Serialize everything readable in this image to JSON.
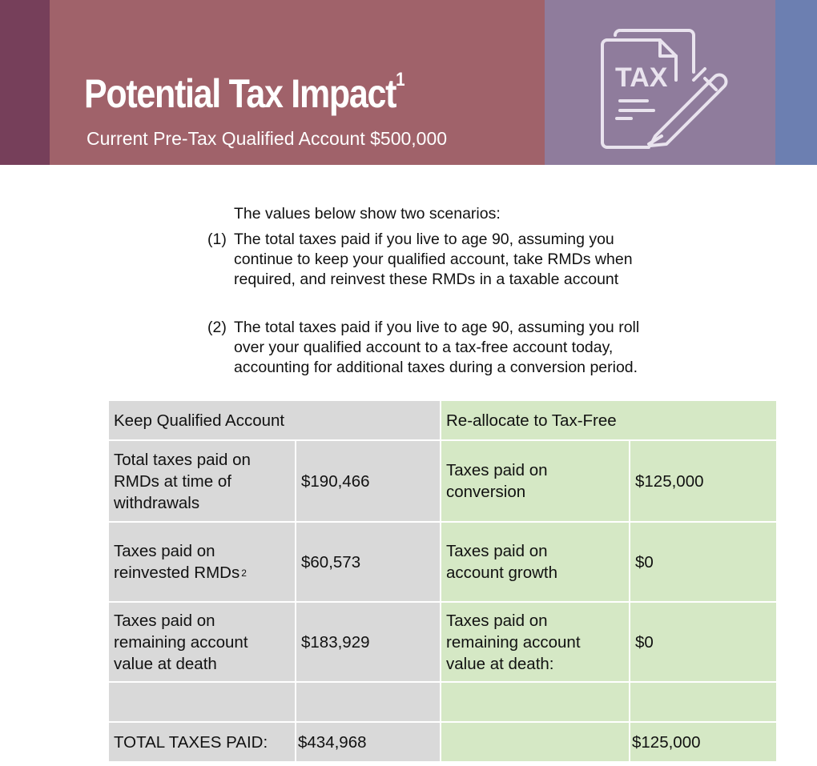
{
  "header": {
    "title": "Potential Tax Impact",
    "title_footnote": "1",
    "subtitle": "Current Pre-Tax Qualified Account $500,000",
    "icon_text": "TAX",
    "colors": {
      "band_left": "#763f5a",
      "band_main": "#a0626a",
      "band_icon": "#8f7c9c",
      "band_right": "#6c7fb1"
    }
  },
  "intro": {
    "lead": "The values below show two scenarios:",
    "scenario_1": {
      "marker": "(1)",
      "lines": [
        "The total taxes paid if you live to age 90, assuming you",
        "continue to keep your qualified account, take RMDs when",
        "required, and reinvest these RMDs in a taxable account"
      ]
    },
    "scenario_2": {
      "marker": "(2)",
      "lines": [
        "The total taxes paid if you live to age 90, assuming you roll",
        "over your qualified account to a tax-free account today,",
        "accounting for additional taxes during a conversion period."
      ]
    }
  },
  "table": {
    "headers": {
      "keep": "Keep Qualified Account",
      "reallocate": "Re-allocate to Tax-Free"
    },
    "rows": [
      {
        "keep_label_lines": [
          "Total taxes paid on",
          "RMDs at time of",
          "withdrawals"
        ],
        "keep_value": "$190,466",
        "realloc_label_lines": [
          "Taxes paid on",
          "conversion"
        ],
        "realloc_value": "$125,000"
      },
      {
        "keep_label_lines": [
          "Taxes paid on",
          "reinvested RMDs"
        ],
        "keep_footnote": "2",
        "keep_value": "$60,573",
        "realloc_label_lines": [
          "Taxes paid on",
          "account growth"
        ],
        "realloc_value": "$0"
      },
      {
        "keep_label_lines": [
          "Taxes paid on",
          "remaining account",
          "value at death"
        ],
        "keep_value": "$183,929",
        "realloc_label_lines": [
          "Taxes paid on",
          "remaining account",
          "value at death:"
        ],
        "realloc_value": "$0"
      }
    ],
    "total": {
      "label": "TOTAL TAXES PAID:",
      "keep_value": "$434,968",
      "realloc_value": "$125,000"
    },
    "colors": {
      "keep_bg": "#d9d9d9",
      "realloc_bg": "#d5e8c5"
    }
  }
}
